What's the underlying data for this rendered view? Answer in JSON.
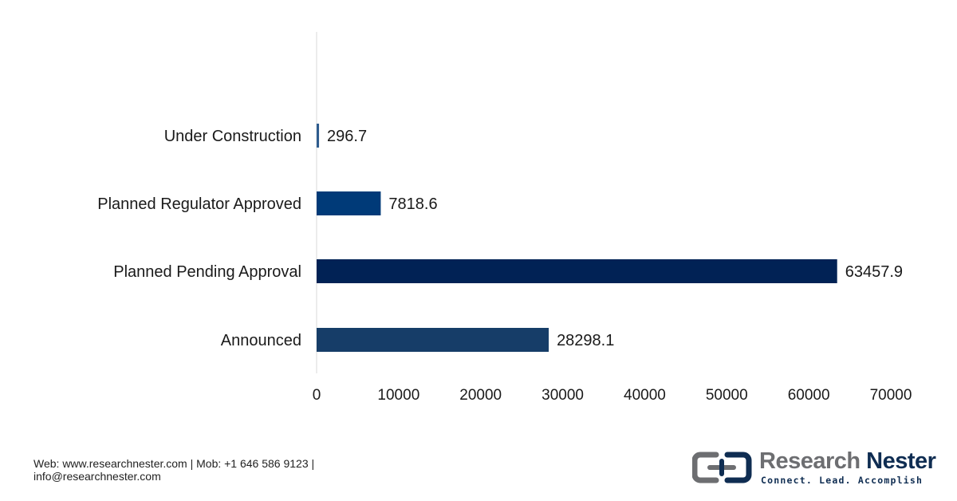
{
  "chart_data": {
    "type": "bar",
    "orientation": "horizontal",
    "categories": [
      "Under Construction",
      "Planned Regulator Approved",
      "Planned Pending Approval",
      "Announced"
    ],
    "values": [
      296.7,
      7818.6,
      63457.9,
      28298.1
    ],
    "value_labels": [
      "296.7",
      "7818.6",
      "63457.9",
      "28298.1"
    ],
    "bar_colors": [
      "#2e5c8e",
      "#003a78",
      "#012255",
      "#163d68"
    ],
    "xlim": [
      0,
      70000
    ],
    "xticks": [
      0,
      10000,
      20000,
      30000,
      40000,
      50000,
      60000,
      70000
    ],
    "xtick_labels": [
      "0",
      "10000",
      "20000",
      "30000",
      "40000",
      "50000",
      "60000",
      "70000"
    ],
    "grid": false,
    "legend": "none",
    "title": "",
    "xlabel": "",
    "ylabel": ""
  },
  "footer": {
    "line1": "Web: www.researchnester.com | Mob: +1 646 586 9123 |",
    "line2": "info@researchnester.com"
  },
  "logo": {
    "word1": "Research",
    "word2": "Nester",
    "tagline": "Connect. Lead. Accomplish",
    "icon": "research-nester-logo-icon"
  },
  "colors": {
    "axis": "#d9d9d9",
    "logo_grey": "#6d6e71",
    "logo_navy": "#0f2d52"
  }
}
